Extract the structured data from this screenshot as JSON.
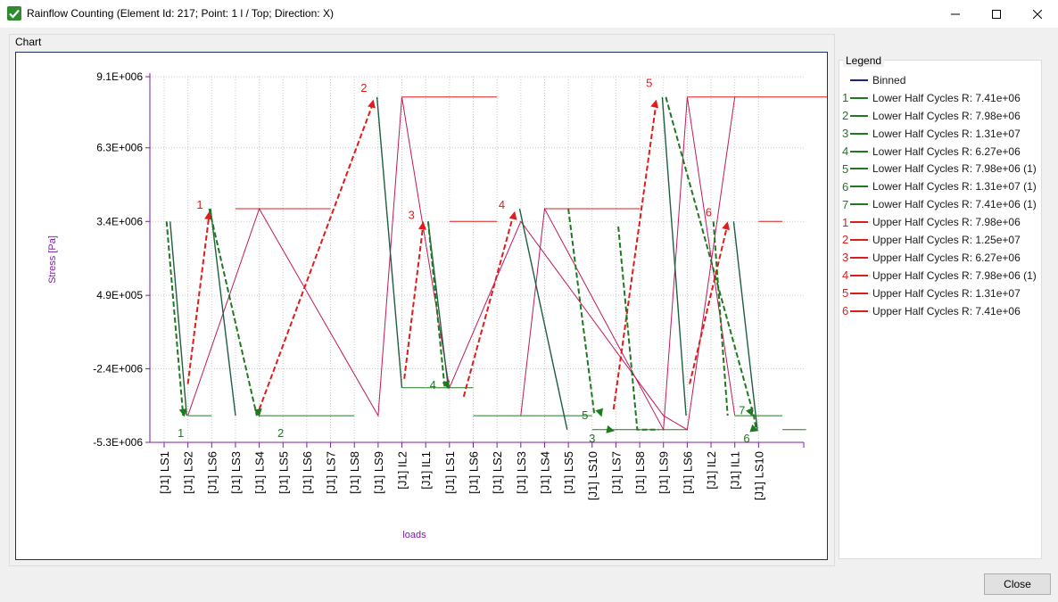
{
  "window": {
    "title": "Rainflow Counting (Element Id: 217; Point: 1 l / Top; Direction: X)",
    "icon": "check-icon"
  },
  "chart_group": {
    "label": "Chart"
  },
  "legend_group": {
    "label": "Legend"
  },
  "legend": [
    {
      "num": "",
      "label": "Binned",
      "color": "#1a237e"
    },
    {
      "num": "1",
      "label": "Lower Half Cycles R: 7.41e+06",
      "color": "#1f7a1f"
    },
    {
      "num": "2",
      "label": "Lower Half Cycles R: 7.98e+06",
      "color": "#1f7a1f"
    },
    {
      "num": "3",
      "label": "Lower Half Cycles R: 1.31e+07",
      "color": "#1f7a1f"
    },
    {
      "num": "4",
      "label": "Lower Half Cycles R: 6.27e+06",
      "color": "#1f7a1f"
    },
    {
      "num": "5",
      "label": "Lower Half Cycles R: 7.98e+06 (1)",
      "color": "#1f7a1f"
    },
    {
      "num": "6",
      "label": "Lower Half Cycles R: 1.31e+07 (1)",
      "color": "#1f7a1f"
    },
    {
      "num": "7",
      "label": "Lower Half Cycles R: 7.41e+06 (1)",
      "color": "#1f7a1f"
    },
    {
      "num": "1",
      "label": "Upper Half Cycles R: 7.98e+06",
      "color": "#e01b1b"
    },
    {
      "num": "2",
      "label": "Upper Half Cycles R: 1.25e+07",
      "color": "#e01b1b"
    },
    {
      "num": "3",
      "label": "Upper Half Cycles R: 6.27e+06",
      "color": "#e01b1b"
    },
    {
      "num": "4",
      "label": "Upper Half Cycles R: 7.98e+06 (1)",
      "color": "#e01b1b"
    },
    {
      "num": "5",
      "label": "Upper Half Cycles R: 1.31e+07",
      "color": "#e01b1b"
    },
    {
      "num": "6",
      "label": "Upper Half Cycles R: 7.41e+06",
      "color": "#e01b1b"
    }
  ],
  "chart_data": {
    "type": "line",
    "xlabel": "loads",
    "ylabel": "Stress [Pa]",
    "ylim": [
      -5300000,
      9100000
    ],
    "yticks": [
      {
        "v": 9100000,
        "label": "9.1E+006"
      },
      {
        "v": 6300000,
        "label": "6.3E+006"
      },
      {
        "v": 3400000,
        "label": "3.4E+006"
      },
      {
        "v": 490000,
        "label": "4.9E+005"
      },
      {
        "v": -2400000,
        "label": "-2.4E+006"
      },
      {
        "v": -5300000,
        "label": "-5.3E+006"
      }
    ],
    "categories": [
      "[J1] LS1",
      "[J1] LS2",
      "[J1] LS6",
      "[J1] LS3",
      "[J1] LS4",
      "[J1] LS5",
      "[J1] LS6",
      "[J1] LS7",
      "[J1] LS8",
      "[J1] LS9",
      "[J1] IL2",
      "[J1] IL1",
      "[J1] LS1",
      "[J1] LS6",
      "[J1] LS2",
      "[J1] LS3",
      "[J1] LS4",
      "[J1] LS5",
      "[J1] LS10",
      "[J1] LS7",
      "[J1] LS8",
      "[J1] LS9",
      "[J1] LS6",
      "[J1] IL2",
      "[J1] IL1",
      "[J1] LS10"
    ],
    "grid": true,
    "colors": {
      "binned": "#1a237e",
      "lower": "#1f7a1f",
      "upper": "#e01b1b",
      "history": "#c2185b",
      "axis": "#7b1fa2"
    },
    "binned_series": [
      {
        "name": "Binned",
        "x": [
          0.25,
          0.95
        ],
        "y": [
          3400000,
          -4250000
        ]
      },
      {
        "name": "Binned",
        "x": [
          1.95,
          3.0
        ],
        "y": [
          3900000,
          -4250000
        ]
      },
      {
        "name": "Binned",
        "x": [
          8.95,
          10.0
        ],
        "y": [
          8300000,
          -3150000
        ]
      },
      {
        "name": "Binned",
        "x": [
          11.1,
          11.95
        ],
        "y": [
          3400000,
          -3150000
        ]
      },
      {
        "name": "Binned",
        "x": [
          14.95,
          16.95
        ],
        "y": [
          3900000,
          -4800000
        ]
      },
      {
        "name": "Binned",
        "x": [
          20.95,
          21.95
        ],
        "y": [
          8300000,
          -4250000
        ]
      },
      {
        "name": "Binned",
        "x": [
          23.95,
          24.95
        ],
        "y": [
          3400000,
          -4800000
        ]
      }
    ],
    "history": {
      "x": [
        1,
        4,
        9,
        10,
        12,
        15,
        21,
        22,
        24
      ],
      "y": [
        -4250000,
        3900000,
        -4250000,
        8300000,
        -3150000,
        3400000,
        -4250000,
        -4800000,
        8300000
      ]
    },
    "history_2": {
      "x": [
        15,
        16,
        21,
        22,
        24
      ],
      "y": [
        -4250000,
        3900000,
        -4800000,
        8300000,
        -4250000
      ]
    },
    "upper_cycles": [
      {
        "num": "1",
        "x": [
          1.0,
          1.9
        ],
        "y": [
          -3000000,
          3700000
        ]
      },
      {
        "num": "2",
        "x": [
          4.0,
          8.8
        ],
        "y": [
          -4000000,
          8100000
        ]
      },
      {
        "num": "3",
        "x": [
          10.1,
          10.9
        ],
        "y": [
          -2800000,
          3300000
        ]
      },
      {
        "num": "4",
        "x": [
          12.6,
          14.7
        ],
        "y": [
          -3500000,
          3700000
        ]
      },
      {
        "num": "5",
        "x": [
          18.9,
          20.7
        ],
        "y": [
          -4000000,
          8100000
        ]
      },
      {
        "num": "6",
        "x": [
          22.1,
          23.7
        ],
        "y": [
          -3000000,
          3300000
        ]
      }
    ],
    "lower_cycles": [
      {
        "num": "1",
        "x": [
          0.1,
          0.8
        ],
        "y": [
          3400000,
          -4250000
        ]
      },
      {
        "num": "2",
        "x": [
          1.9,
          3.9
        ],
        "y": [
          3900000,
          -4250000
        ]
      },
      {
        "num": "3",
        "x": [
          19.1,
          19.9,
          20.8
        ],
        "y": [
          3200000,
          -4800000,
          -4800000
        ]
      },
      {
        "num": "4",
        "x": [
          11.1,
          11.8
        ],
        "y": [
          3400000,
          -3150000
        ]
      },
      {
        "num": "5",
        "x": [
          17.0,
          18.1
        ],
        "y": [
          3900000,
          -4250000
        ]
      },
      {
        "num": "6",
        "x": [
          21.1,
          24.8,
          24.9
        ],
        "y": [
          8300000,
          -4250000,
          -4800000
        ]
      },
      {
        "num": "7",
        "x": [
          23.1,
          23.7
        ],
        "y": [
          3400000,
          -4250000
        ]
      }
    ],
    "upper_labels": [
      {
        "num": "1",
        "x": 1.5,
        "y": 3900000
      },
      {
        "num": "2",
        "x": 8.4,
        "y": 8500000
      },
      {
        "num": "3",
        "x": 10.4,
        "y": 3500000
      },
      {
        "num": "4",
        "x": 14.2,
        "y": 3900000
      },
      {
        "num": "5",
        "x": 20.4,
        "y": 8700000
      },
      {
        "num": "6",
        "x": 22.9,
        "y": 3600000
      }
    ],
    "lower_labels": [
      {
        "num": "1",
        "x": 0.7,
        "y": -4600000
      },
      {
        "num": "2",
        "x": 4.9,
        "y": -4600000
      },
      {
        "num": "3",
        "x": 18.0,
        "y": -4800000
      },
      {
        "num": "4",
        "x": 11.3,
        "y": -2700000
      },
      {
        "num": "5",
        "x": 17.7,
        "y": -3900000
      },
      {
        "num": "6",
        "x": 24.5,
        "y": -4800000
      },
      {
        "num": "7",
        "x": 24.3,
        "y": -3700000
      }
    ],
    "lower_arrows": [
      {
        "x": [
          0.8,
          0.85
        ],
        "y": [
          -4000000,
          -4300000
        ]
      },
      {
        "x": [
          3.95,
          4.0
        ],
        "y": [
          -4000000,
          -4300000
        ]
      },
      {
        "x": [
          11.85,
          11.95
        ],
        "y": [
          -2900000,
          -3200000
        ]
      },
      {
        "x": [
          18.3,
          18.4
        ],
        "y": [
          -4000000,
          -4300000
        ]
      },
      {
        "x": [
          18.7,
          18.95
        ],
        "y": [
          -4800000,
          -4850000
        ]
      },
      {
        "x": [
          24.6,
          24.75
        ],
        "y": [
          -3950000,
          -4280000
        ]
      },
      {
        "x": [
          24.85,
          25.0
        ],
        "y": [
          -4800000,
          -4850000
        ]
      }
    ],
    "upper_arrows": [
      {
        "x": [
          1.85,
          1.9
        ],
        "y": [
          3400000,
          3800000
        ]
      },
      {
        "x": [
          8.7,
          8.8
        ],
        "y": [
          7800000,
          8200000
        ]
      },
      {
        "x": [
          10.85,
          10.9
        ],
        "y": [
          3000000,
          3400000
        ]
      },
      {
        "x": [
          14.65,
          14.75
        ],
        "y": [
          3400000,
          3800000
        ]
      },
      {
        "x": [
          20.6,
          20.7
        ],
        "y": [
          7800000,
          8200000
        ]
      },
      {
        "x": [
          23.6,
          23.7
        ],
        "y": [
          3000000,
          3400000
        ]
      }
    ],
    "hlines_upper": [
      {
        "x": [
          3.0,
          7.0
        ],
        "y": 3900000
      },
      {
        "x": [
          10.0,
          14.0
        ],
        "y": 8300000
      },
      {
        "x": [
          12.0,
          14.0
        ],
        "y": 3400000
      },
      {
        "x": [
          16.0,
          20.0
        ],
        "y": 3900000
      },
      {
        "x": [
          22.0,
          28.0
        ],
        "y": 8300000
      },
      {
        "x": [
          25.0,
          26.0
        ],
        "y": 3400000
      }
    ],
    "hlines_lower": [
      {
        "x": [
          1.0,
          2.0
        ],
        "y": -4250000
      },
      {
        "x": [
          4.0,
          8.0
        ],
        "y": -4250000
      },
      {
        "x": [
          10.0,
          13.0
        ],
        "y": -3150000
      },
      {
        "x": [
          13.0,
          18.0
        ],
        "y": -4250000
      },
      {
        "x": [
          18.0,
          22.0
        ],
        "y": -4800000
      },
      {
        "x": [
          24.0,
          26.0
        ],
        "y": -4250000
      },
      {
        "x": [
          26.0,
          27.0
        ],
        "y": -4800000
      }
    ]
  },
  "buttons": {
    "close": "Close"
  }
}
